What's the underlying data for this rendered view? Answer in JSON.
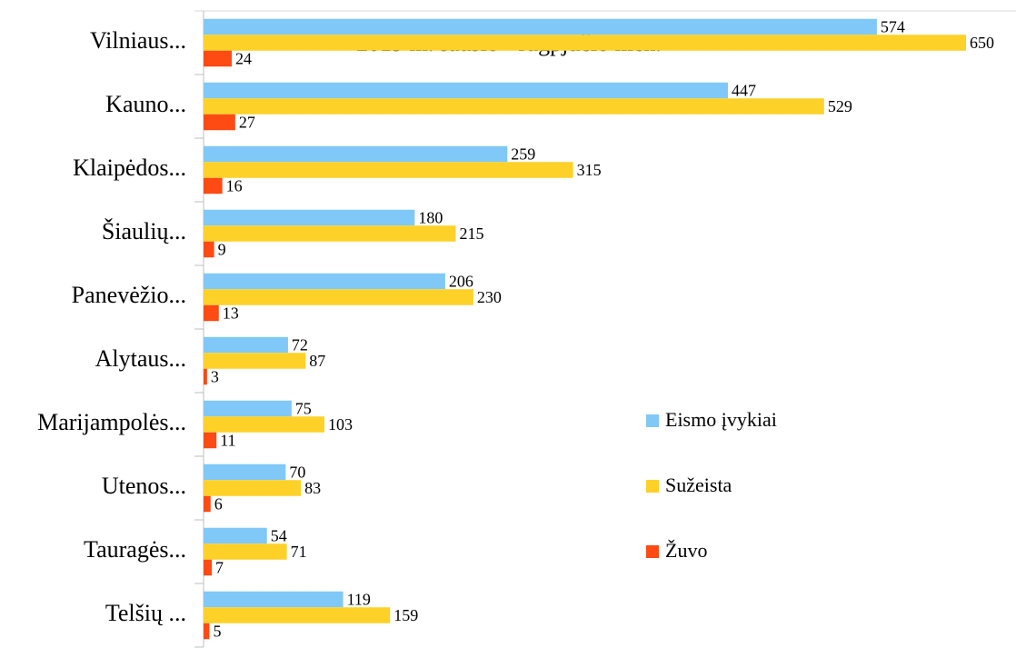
{
  "chart_data": {
    "type": "bar",
    "orientation": "horizontal",
    "title": "2019 m. sausio - rugpjūčio mėn.",
    "categories": [
      "Vilniaus...",
      "Kauno...",
      "Klaipėdos...",
      "Šiaulių...",
      "Panevėžio...",
      "Alytaus...",
      "Marijampolės...",
      "Utenos...",
      "Tauragės...",
      "Telšių ..."
    ],
    "series": [
      {
        "name": "Eismo įvykiai",
        "color": "#80c8f7",
        "values": [
          574,
          447,
          259,
          180,
          206,
          72,
          75,
          70,
          54,
          119
        ]
      },
      {
        "name": "Sužeista",
        "color": "#fdd128",
        "values": [
          650,
          529,
          315,
          215,
          230,
          87,
          103,
          83,
          71,
          159
        ]
      },
      {
        "name": "Žuvo",
        "color": "#fe4a13",
        "values": [
          24,
          27,
          16,
          9,
          13,
          3,
          11,
          6,
          7,
          5
        ]
      }
    ],
    "legend": "right"
  }
}
